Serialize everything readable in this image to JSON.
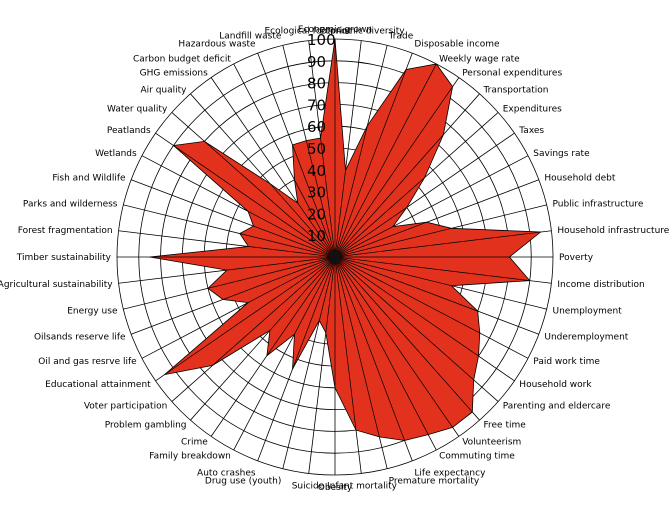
{
  "chart_data": {
    "type": "radar",
    "r_range": [
      0,
      100
    ],
    "ticks": [
      "10",
      "20",
      "30",
      "40",
      "50",
      "60",
      "70",
      "80",
      "90",
      "100"
    ],
    "grid": true,
    "fill_color": "#e2321e",
    "categories": [
      "Economic grown",
      "Economic diversity",
      "Trade",
      "Disposable income",
      "Weekly wage rate",
      "Personal expenditures",
      "Transportation",
      "Expenditures",
      "Taxes",
      "Savings rate",
      "Household debt",
      "Public infrastructure",
      "Household infrastructure",
      "Poverty",
      "Income distribution",
      "Unemployment",
      "Underemployment",
      "Paid work time",
      "Household work",
      "Parenting and eldercare",
      "Free time",
      "Volunteerism",
      "Commuting time",
      "Life expectancy",
      "Premature mortality",
      "Infant mortality",
      "Obesity",
      "Suicide",
      "Drug use (youth)",
      "Auto crashes",
      "Family breakdown",
      "Crime",
      "Problem gambling",
      "Voter participation",
      "Educational attainment",
      "Oil and gas resrve life",
      "Oilsands reserve life",
      "Energy use",
      "Agricultural sustainability",
      "Timber sustainability",
      "Forest fragmentation",
      "Parks and wilderness",
      "Fish and Wildlife",
      "Wetlands",
      "Peatlands",
      "Water quality",
      "Air quality",
      "GHG emissions",
      "Carbon budget deficit",
      "Hazardous waste",
      "Landfill waste",
      "Ecological footprint"
    ],
    "values": [
      100,
      40,
      62,
      92,
      100,
      95,
      75,
      55,
      40,
      30,
      45,
      55,
      95,
      80,
      90,
      55,
      70,
      75,
      80,
      85,
      95,
      95,
      92,
      90,
      85,
      80,
      60,
      35,
      30,
      55,
      40,
      55,
      45,
      75,
      95,
      45,
      55,
      60,
      50,
      85,
      40,
      45,
      40,
      45,
      90,
      80,
      45,
      30,
      40,
      55,
      55,
      55
    ]
  }
}
